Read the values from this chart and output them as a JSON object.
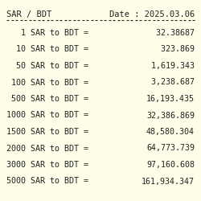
{
  "background_color": "#fdfde8",
  "title_left": "SAR / BDT",
  "title_right": "Date : 2025.03.06",
  "title_fontsize": 7.5,
  "row_fontsize": 7.2,
  "font_family": "monospace",
  "text_color": "#222222",
  "rows": [
    {
      "label": "   1 SAR to BDT =",
      "value": "  32.38687"
    },
    {
      "label": "  10 SAR to BDT =",
      "value": "   323.869"
    },
    {
      "label": "  50 SAR to BDT =",
      "value": " 1,619.343"
    },
    {
      "label": " 100 SAR to BDT =",
      "value": " 3,238.687"
    },
    {
      "label": " 500 SAR to BDT =",
      "value": "16,193.435"
    },
    {
      "label": "1000 SAR to BDT =",
      "value": "32,386.869"
    },
    {
      "label": "1500 SAR to BDT =",
      "value": "48,580.304"
    },
    {
      "label": "2000 SAR to BDT =",
      "value": "64,773.739"
    },
    {
      "label": "3000 SAR to BDT =",
      "value": "97,160.608"
    },
    {
      "label": "5000 SAR to BDT =",
      "value": "161,934.347"
    }
  ]
}
